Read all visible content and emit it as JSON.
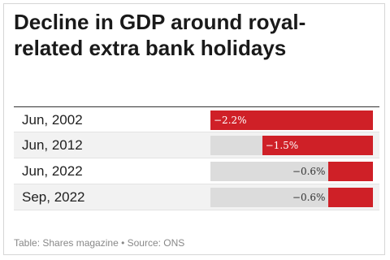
{
  "chart_data": {
    "type": "bar",
    "title": "Decline in GDP around royal-related extra bank holidays",
    "categories": [
      "Jun, 2002",
      "Jun, 2012",
      "Jun, 2022",
      "Sep, 2022"
    ],
    "values": [
      -2.2,
      -1.5,
      -0.6,
      -0.6
    ],
    "value_labels": [
      "−2.2%",
      "−1.5%",
      "−0.6%",
      "−0.6%"
    ],
    "xlim": [
      -2.2,
      0
    ],
    "bar_color": "#cf2027",
    "track_color": "#dcdcdc",
    "grid": false
  },
  "footer": "Table: Shares magazine • Source: ONS"
}
